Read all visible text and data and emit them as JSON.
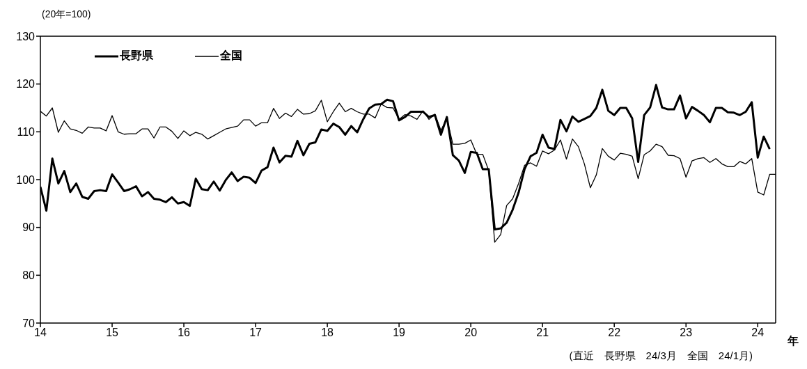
{
  "chart_data": {
    "type": "line",
    "ylabel": "(20年=100)",
    "xlabel": "年",
    "annotations": [
      "(直近　長野県　24/3月　全国　24/1月)"
    ],
    "x": [
      "2014-01",
      "2014-02",
      "2014-03",
      "2014-04",
      "2014-05",
      "2014-06",
      "2014-07",
      "2014-08",
      "2014-09",
      "2014-10",
      "2014-11",
      "2014-12",
      "2015-01",
      "2015-02",
      "2015-03",
      "2015-04",
      "2015-05",
      "2015-06",
      "2015-07",
      "2015-08",
      "2015-09",
      "2015-10",
      "2015-11",
      "2015-12",
      "2016-01",
      "2016-02",
      "2016-03",
      "2016-04",
      "2016-05",
      "2016-06",
      "2016-07",
      "2016-08",
      "2016-09",
      "2016-10",
      "2016-11",
      "2016-12",
      "2017-01",
      "2017-02",
      "2017-03",
      "2017-04",
      "2017-05",
      "2017-06",
      "2017-07",
      "2017-08",
      "2017-09",
      "2017-10",
      "2017-11",
      "2017-12",
      "2018-01",
      "2018-02",
      "2018-03",
      "2018-04",
      "2018-05",
      "2018-06",
      "2018-07",
      "2018-08",
      "2018-09",
      "2018-10",
      "2018-11",
      "2018-12",
      "2019-01",
      "2019-02",
      "2019-03",
      "2019-04",
      "2019-05",
      "2019-06",
      "2019-07",
      "2019-08",
      "2019-09",
      "2019-10",
      "2019-11",
      "2019-12",
      "2020-01",
      "2020-02",
      "2020-03",
      "2020-04",
      "2020-05",
      "2020-06",
      "2020-07",
      "2020-08",
      "2020-09",
      "2020-10",
      "2020-11",
      "2020-12",
      "2021-01",
      "2021-02",
      "2021-03",
      "2021-04",
      "2021-05",
      "2021-06",
      "2021-07",
      "2021-08",
      "2021-09",
      "2021-10",
      "2021-11",
      "2021-12",
      "2022-01",
      "2022-02",
      "2022-03",
      "2022-04",
      "2022-05",
      "2022-06",
      "2022-07",
      "2022-08",
      "2022-09",
      "2022-10",
      "2022-11",
      "2022-12",
      "2023-01",
      "2023-02",
      "2023-03",
      "2023-04",
      "2023-05",
      "2023-06",
      "2023-07",
      "2023-08",
      "2023-09",
      "2023-10",
      "2023-11",
      "2023-12",
      "2024-01",
      "2024-02",
      "2024-03",
      "2024-04"
    ],
    "series": [
      {
        "name": "長野県",
        "color": "#000000",
        "values": [
          98.5,
          93.5,
          104.4,
          99.2,
          101.8,
          97.4,
          99.2,
          96.4,
          96.0,
          97.6,
          97.8,
          97.6,
          101.1,
          99.4,
          97.6,
          98.0,
          98.6,
          96.5,
          97.4,
          96.0,
          95.8,
          95.3,
          96.3,
          95.0,
          95.3,
          94.5,
          100.2,
          98.0,
          97.8,
          99.6,
          97.7,
          99.9,
          101.5,
          99.7,
          100.6,
          100.4,
          99.3,
          101.9,
          102.6,
          106.7,
          103.6,
          105.0,
          104.8,
          108.1,
          105.1,
          107.5,
          107.8,
          110.5,
          110.2,
          111.7,
          111.0,
          109.4,
          111.2,
          109.9,
          112.6,
          114.9,
          115.7,
          115.8,
          116.7,
          116.4,
          112.4,
          113.1,
          114.2,
          114.2,
          114.2,
          113.1,
          113.5,
          109.4,
          113.1,
          105.1,
          104.0,
          101.4,
          105.8,
          105.6,
          102.2,
          102.2,
          89.6,
          89.8,
          91.0,
          93.7,
          97.3,
          102.2,
          104.9,
          105.6,
          109.4,
          106.7,
          106.4,
          112.5,
          110.1,
          113.2,
          112.1,
          112.7,
          113.3,
          115.0,
          118.8,
          114.4,
          113.5,
          115.0,
          115.0,
          112.8,
          103.7,
          113.5,
          115.1,
          119.8,
          115.1,
          114.7,
          114.7,
          117.6,
          112.8,
          115.2,
          114.4,
          113.5,
          112.0,
          115.0,
          115.0,
          114.1,
          114.0,
          113.5,
          114.2,
          116.2,
          104.6,
          109.0,
          106.4,
          null
        ]
      },
      {
        "name": "全国",
        "color": "#000000",
        "values": [
          114.3,
          113.3,
          115.0,
          109.9,
          112.3,
          110.6,
          110.3,
          109.7,
          111.0,
          110.8,
          110.8,
          110.2,
          113.4,
          110.0,
          109.5,
          109.6,
          109.6,
          110.6,
          110.6,
          108.7,
          111.0,
          111.0,
          110.1,
          108.6,
          110.2,
          109.2,
          109.9,
          109.5,
          108.5,
          109.2,
          109.9,
          110.6,
          110.9,
          111.2,
          112.5,
          112.5,
          111.2,
          111.9,
          111.9,
          114.9,
          112.8,
          113.9,
          113.2,
          114.7,
          113.7,
          113.8,
          114.4,
          116.6,
          112.1,
          114.2,
          116.0,
          114.2,
          114.9,
          114.2,
          113.7,
          113.7,
          112.9,
          115.8,
          115.1,
          115.0,
          112.6,
          113.6,
          113.3,
          112.6,
          114.4,
          112.6,
          113.7,
          110.3,
          112.8,
          107.4,
          107.4,
          107.6,
          108.3,
          105.3,
          105.3,
          101.9,
          86.9,
          88.5,
          94.6,
          96.0,
          99.2,
          103.0,
          103.5,
          102.8,
          106.0,
          105.4,
          106.2,
          108.3,
          104.3,
          108.5,
          106.9,
          103.3,
          98.3,
          101.0,
          106.5,
          104.9,
          104.1,
          105.5,
          105.3,
          104.9,
          100.2,
          105.2,
          106.0,
          107.4,
          106.9,
          105.1,
          105.0,
          104.4,
          100.5,
          103.9,
          104.4,
          104.6,
          103.6,
          104.4,
          103.3,
          102.7,
          102.7,
          103.8,
          103.3,
          104.4,
          97.4,
          96.8,
          101.1,
          101.1
        ]
      }
    ],
    "xlim": [
      "2014-01",
      "2024-04"
    ],
    "xticks": [
      {
        "value": "2014-01",
        "label": "14"
      },
      {
        "value": "2015-01",
        "label": "15"
      },
      {
        "value": "2016-01",
        "label": "16"
      },
      {
        "value": "2017-01",
        "label": "17"
      },
      {
        "value": "2018-01",
        "label": "18"
      },
      {
        "value": "2019-01",
        "label": "19"
      },
      {
        "value": "2020-01",
        "label": "20"
      },
      {
        "value": "2021-01",
        "label": "21"
      },
      {
        "value": "2022-01",
        "label": "22"
      },
      {
        "value": "2023-01",
        "label": "23"
      },
      {
        "value": "2024-01",
        "label": "24"
      }
    ],
    "ylim": [
      70,
      130
    ],
    "yticks": [
      70,
      80,
      90,
      100,
      110,
      120,
      130
    ],
    "grid": false,
    "legend": "top left",
    "marker": "none",
    "line_style": "solid"
  }
}
